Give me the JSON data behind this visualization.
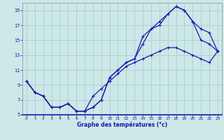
{
  "xlabel": "Graphe des températures (°c)",
  "background_color": "#cce8e8",
  "grid_color": "#aacece",
  "line_color": "#1a1aaa",
  "xlim": [
    -0.5,
    23.5
  ],
  "ylim": [
    5,
    20
  ],
  "xticks": [
    0,
    1,
    2,
    3,
    4,
    5,
    6,
    7,
    8,
    9,
    10,
    11,
    12,
    13,
    14,
    15,
    16,
    17,
    18,
    19,
    20,
    21,
    22,
    23
  ],
  "yticks": [
    5,
    7,
    9,
    11,
    13,
    15,
    17,
    19
  ],
  "line1_x": [
    0,
    1,
    2,
    3,
    4,
    5,
    6,
    7,
    8,
    9,
    10,
    11,
    12,
    13,
    14,
    15,
    16,
    17,
    18,
    19,
    20,
    21,
    22,
    23
  ],
  "line1_y": [
    9.5,
    8.0,
    7.5,
    6.0,
    6.0,
    6.5,
    5.5,
    5.5,
    6.0,
    7.0,
    10.0,
    11.0,
    12.0,
    12.5,
    14.5,
    16.5,
    17.5,
    18.5,
    19.5,
    19.0,
    17.5,
    15.0,
    14.5,
    13.5
  ],
  "line2_x": [
    0,
    1,
    2,
    3,
    4,
    5,
    6,
    7,
    8,
    9,
    10,
    11,
    12,
    13,
    14,
    15,
    16,
    17,
    18,
    19,
    20,
    21,
    22,
    23
  ],
  "line2_y": [
    9.5,
    8.0,
    7.5,
    6.0,
    6.0,
    6.5,
    5.5,
    5.5,
    6.0,
    7.0,
    10.0,
    11.0,
    12.0,
    12.5,
    15.5,
    16.5,
    17.0,
    18.5,
    19.5,
    19.0,
    17.5,
    16.5,
    16.0,
    13.5
  ],
  "line3_x": [
    0,
    1,
    2,
    3,
    4,
    5,
    6,
    7,
    8,
    9,
    10,
    11,
    12,
    13,
    14,
    15,
    16,
    17,
    18,
    19,
    20,
    21,
    22,
    23
  ],
  "line3_y": [
    9.5,
    8.0,
    7.5,
    6.0,
    6.0,
    6.5,
    5.5,
    5.5,
    7.5,
    8.5,
    9.5,
    10.5,
    11.5,
    12.0,
    12.5,
    13.0,
    13.5,
    14.0,
    14.0,
    13.5,
    13.0,
    12.5,
    12.0,
    13.5
  ]
}
